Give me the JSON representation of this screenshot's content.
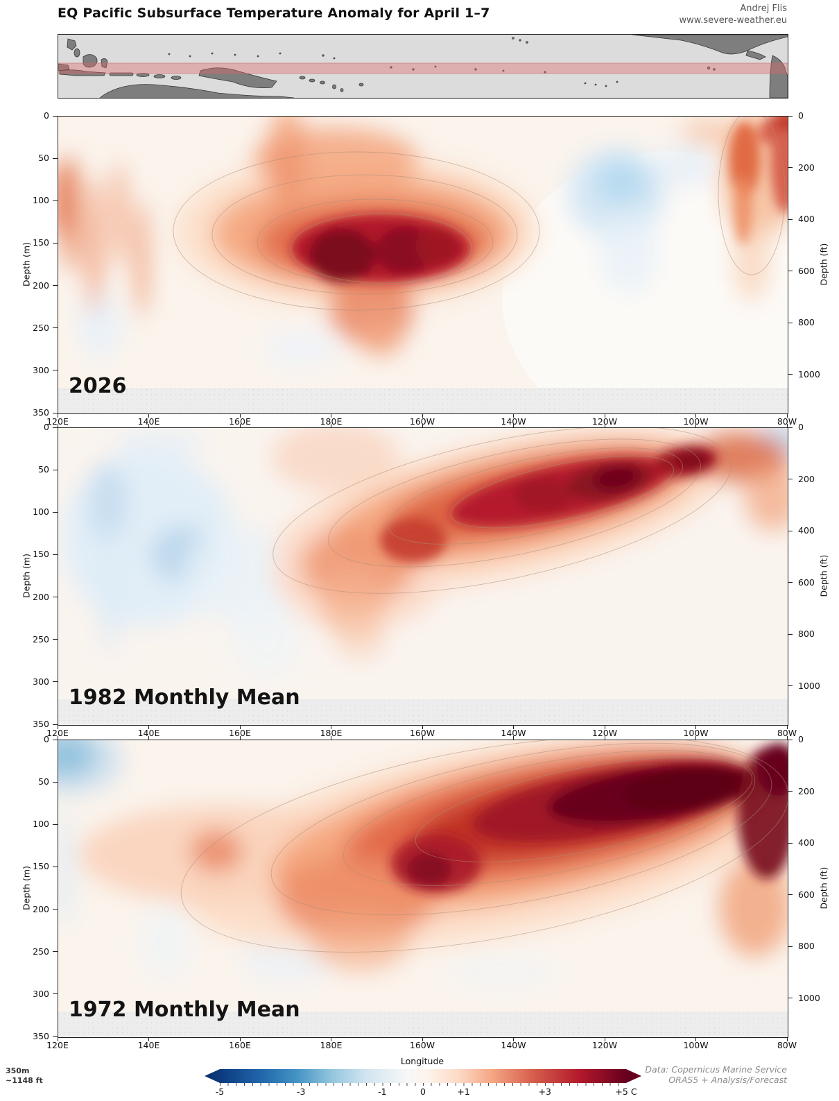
{
  "header": {
    "title": "EQ Pacific Subsurface Temperature Anomaly for April 1–7",
    "credit_line1": "Andrej Flis",
    "credit_line2": "www.severe-weather.eu"
  },
  "map": {
    "ocean_color": "#dcdcdc",
    "land_color": "#7e7e7e",
    "equator_band_color": "#e06666",
    "equator_band_opacity": 0.38
  },
  "axes": {
    "depth_m_label": "Depth (m)",
    "depth_ft_label": "Depth (ft)",
    "xlabel": "Longitude",
    "depth_m_ticks": [
      "0",
      "50",
      "100",
      "150",
      "200",
      "250",
      "300",
      "350"
    ],
    "depth_ft_ticks": [
      "0",
      "200",
      "400",
      "600",
      "800",
      "1000"
    ],
    "lon_ticks": [
      "120E",
      "140E",
      "160E",
      "180E",
      "160W",
      "140W",
      "120W",
      "100W",
      "80W"
    ]
  },
  "panels": [
    {
      "label": "2026"
    },
    {
      "label": "1982 Monthly Mean"
    },
    {
      "label": "1972 Monthly Mean"
    }
  ],
  "footer": {
    "depth_note_line1": "350m",
    "depth_note_line2": "~1148 ft",
    "data_credit_line1": "Data: Copernicus Marine Service",
    "data_credit_line2": "ORAS5 + Analysis/Forecast"
  },
  "colorbar": {
    "min": -5,
    "max": 5,
    "units": "C",
    "ticks": [
      {
        "value": -5,
        "label": "-5"
      },
      {
        "value": -3,
        "label": "-3"
      },
      {
        "value": -1,
        "label": "-1"
      },
      {
        "value": 0,
        "label": "0"
      },
      {
        "value": 1,
        "label": "+1"
      },
      {
        "value": 3,
        "label": "+3"
      },
      {
        "value": 5,
        "label": "+5 C"
      }
    ],
    "negative_end_color": "#08306b",
    "zero_color": "#f7f7f7",
    "positive_end_color": "#67001f"
  },
  "chart_data": [
    {
      "type": "heatmap",
      "title": "2026",
      "xlabel": "Longitude",
      "ylabel_left": "Depth (m)",
      "ylabel_right": "Depth (ft)",
      "ylim_m": [
        0,
        350
      ],
      "xlim": [
        "120E",
        "80W"
      ],
      "units": "°C anomaly",
      "masked_below_m": 320,
      "grid_lon": [
        "120E",
        "140E",
        "160E",
        "180E",
        "160W",
        "140W",
        "120W",
        "100W",
        "80W"
      ],
      "grid_depth_m": [
        0,
        50,
        100,
        150,
        200,
        250,
        300
      ],
      "anomaly_grid_estimated_C": [
        [
          0.3,
          0.2,
          0.8,
          0.5,
          0.3,
          0.2,
          0.0,
          0.1,
          1.5
        ],
        [
          0.5,
          0.5,
          1.5,
          1.2,
          0.8,
          0.5,
          -0.3,
          0.0,
          2.0
        ],
        [
          1.5,
          1.0,
          1.8,
          2.5,
          2.0,
          1.5,
          -0.5,
          0.2,
          1.5
        ],
        [
          0.8,
          1.0,
          1.5,
          4.5,
          3.5,
          1.5,
          0.0,
          0.2,
          0.8
        ],
        [
          0.5,
          0.8,
          0.8,
          2.5,
          2.0,
          0.8,
          0.1,
          0.1,
          0.5
        ],
        [
          0.2,
          0.5,
          0.4,
          1.0,
          0.8,
          0.3,
          0.1,
          0.0,
          0.2
        ],
        [
          0.1,
          0.2,
          0.2,
          0.3,
          0.3,
          0.2,
          0.0,
          0.0,
          0.1
        ]
      ],
      "features": [
        "Strong warm anomaly core ~+4 to +5 C centered near 180E–170W at 130–200 m depth",
        "Warm plume reaching the surface near 165E",
        "Weak cool anomaly ~-0.5 C near 120W at 50–130 m",
        "Warm column ~+2 C at the far eastern edge (80–85W) from surface to ~250 m"
      ]
    },
    {
      "type": "heatmap",
      "title": "1982 Monthly Mean",
      "xlabel": "Longitude",
      "ylabel_left": "Depth (m)",
      "ylabel_right": "Depth (ft)",
      "ylim_m": [
        0,
        350
      ],
      "xlim": [
        "120E",
        "80W"
      ],
      "units": "°C anomaly",
      "masked_below_m": 320,
      "grid_lon": [
        "120E",
        "140E",
        "160E",
        "180E",
        "160W",
        "140W",
        "120W",
        "100W",
        "80W"
      ],
      "grid_depth_m": [
        0,
        50,
        100,
        150,
        200,
        250,
        300
      ],
      "anomaly_grid_estimated_C": [
        [
          0.2,
          -0.2,
          0.3,
          0.5,
          0.5,
          0.8,
          1.5,
          2.5,
          -0.5
        ],
        [
          0.0,
          -0.5,
          0.3,
          0.8,
          1.5,
          2.5,
          3.5,
          3.0,
          0.5
        ],
        [
          -0.3,
          -0.8,
          0.3,
          1.0,
          2.0,
          3.5,
          2.5,
          1.0,
          0.3
        ],
        [
          -0.5,
          -0.8,
          0.3,
          1.5,
          2.5,
          1.5,
          0.8,
          0.3,
          0.2
        ],
        [
          -0.3,
          -0.5,
          0.2,
          1.0,
          1.0,
          0.5,
          0.3,
          0.2,
          0.1
        ],
        [
          -0.2,
          -0.3,
          0.1,
          0.5,
          0.4,
          0.2,
          0.2,
          0.1,
          0.1
        ],
        [
          0.0,
          -0.1,
          0.1,
          0.2,
          0.2,
          0.1,
          0.1,
          0.1,
          0.0
        ]
      ],
      "features": [
        "Eastward-shoaling warm tongue from ~175E at 200 m up to ~95W at 30 m",
        "Darkest cores ~+3.5 to +4 C near 130W–120W at 60–100 m and near 105W at 40–70 m",
        "Cool anomaly ~-1 C in the west (125E–150E) from surface to ~250 m",
        "Small cool patch at the surface near 80W"
      ]
    },
    {
      "type": "heatmap",
      "title": "1972 Monthly Mean",
      "xlabel": "Longitude",
      "ylabel_left": "Depth (m)",
      "ylabel_right": "Depth (ft)",
      "ylim_m": [
        0,
        350
      ],
      "xlim": [
        "120E",
        "80W"
      ],
      "units": "°C anomaly",
      "masked_below_m": 320,
      "grid_lon": [
        "120E",
        "140E",
        "160E",
        "180E",
        "160W",
        "140W",
        "120W",
        "100W",
        "80W"
      ],
      "grid_depth_m": [
        0,
        50,
        100,
        150,
        200,
        250,
        300
      ],
      "anomaly_grid_estimated_C": [
        [
          -1.0,
          0.2,
          0.3,
          0.3,
          0.5,
          1.0,
          2.0,
          3.5,
          4.0
        ],
        [
          -0.5,
          0.3,
          0.8,
          1.0,
          1.5,
          3.0,
          4.5,
          4.5,
          4.0
        ],
        [
          0.3,
          0.5,
          1.0,
          1.5,
          2.5,
          4.0,
          4.5,
          3.0,
          3.5
        ],
        [
          0.3,
          0.8,
          1.2,
          1.8,
          3.0,
          2.5,
          1.5,
          1.0,
          2.0
        ],
        [
          0.2,
          0.5,
          0.8,
          1.2,
          1.5,
          1.0,
          0.8,
          0.5,
          1.0
        ],
        [
          0.1,
          0.3,
          0.5,
          0.8,
          0.8,
          0.5,
          0.4,
          0.3,
          0.5
        ],
        [
          0.0,
          0.2,
          0.3,
          0.4,
          0.4,
          0.3,
          0.2,
          0.2,
          0.3
        ]
      ],
      "features": [
        "Broad, very dark warm tongue (+4 to +5 C) tilting from ~165W/170 m up to ~90W/20 m",
        "Dark red column at the far east (85W) from surface to ~200 m",
        "Moderate warm band ~+1 C across the west at 100–200 m",
        "Cool patch at the surface in the far west near 120E"
      ]
    }
  ]
}
